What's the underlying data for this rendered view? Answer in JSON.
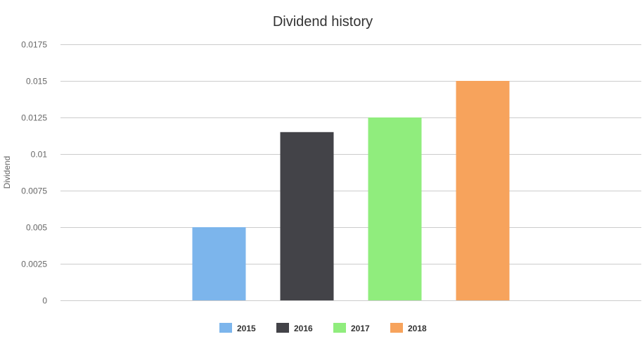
{
  "chart_data": {
    "type": "bar",
    "title": "Dividend history",
    "xlabel": "",
    "ylabel": "Dividend",
    "ylim": [
      0,
      0.0175
    ],
    "yticks": [
      "0",
      "0.0025",
      "0.005",
      "0.0075",
      "0.01",
      "0.0125",
      "0.015",
      "0.0175"
    ],
    "grid": true,
    "legend_position": "bottom",
    "series": [
      {
        "name": "2015",
        "value": 0.005,
        "color": "#7cb5ec"
      },
      {
        "name": "2016",
        "value": 0.0115,
        "color": "#434348"
      },
      {
        "name": "2017",
        "value": 0.0125,
        "color": "#90ed7d"
      },
      {
        "name": "2018",
        "value": 0.015,
        "color": "#f7a35c"
      }
    ]
  }
}
